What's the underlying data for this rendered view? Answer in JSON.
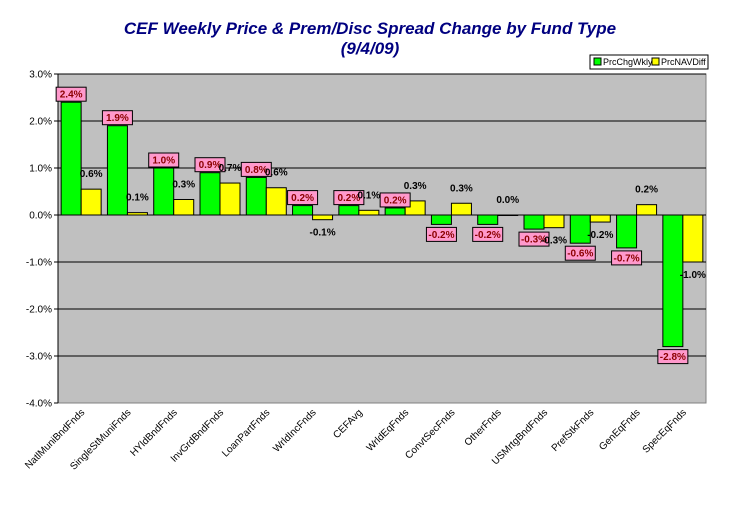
{
  "colors": {
    "plot_bg": "#c0c0c0",
    "series1": "#00ff00",
    "series2": "#ffff00",
    "title": "#000080",
    "label_box": "#ff99cc",
    "label_text": "#8b0000"
  },
  "chart_data": {
    "type": "bar",
    "title": "CEF Weekly Price & Prem/Disc Spread Change by Fund Type",
    "subtitle": "(9/4/09)",
    "ylim": [
      -4.0,
      3.0
    ],
    "yticks": [
      "3.0%",
      "2.0%",
      "1.0%",
      "0.0%",
      "-1.0%",
      "-2.0%",
      "-3.0%",
      "-4.0%"
    ],
    "ytick_values": [
      3,
      2,
      1,
      0,
      -1,
      -2,
      -3,
      -4
    ],
    "grid": true,
    "legend_position": "top-right",
    "categories": [
      "NatlMuniBndFnds",
      "SingleStMuniFnds",
      "HYldBndFnds",
      "InvGrdBndFnds",
      "LoanPartFnds",
      "WrldIncFnds",
      "CEFAvg",
      "WrldEqFnds",
      "ConvtSecFnds",
      "OtherFnds",
      "USMrtgBndFnds",
      "PrefStkFnds",
      "GenEqFnds",
      "SpecEqFnds"
    ],
    "series": [
      {
        "name": "PrcChgWkly",
        "values": [
          2.4,
          1.9,
          1.0,
          0.9,
          0.8,
          0.2,
          0.2,
          0.15,
          -0.2,
          -0.2,
          -0.3,
          -0.6,
          -0.7,
          -2.8
        ],
        "labels": [
          "2.4%",
          "1.9%",
          "1.0%",
          "0.9%",
          "0.8%",
          "0.2%",
          "0.2%",
          "0.2%",
          "-0.2%",
          "-0.2%",
          "-0.3%",
          "-0.6%",
          "-0.7%",
          "-2.8%"
        ]
      },
      {
        "name": "PrcNAVDiff",
        "values": [
          0.55,
          0.05,
          0.33,
          0.68,
          0.58,
          -0.1,
          0.1,
          0.3,
          0.25,
          0.0,
          -0.27,
          -0.15,
          0.22,
          -1.0
        ],
        "labels": [
          "0.6%",
          "0.1%",
          "0.3%",
          "0.7%",
          "0.6%",
          "-0.1%",
          "0.1%",
          "0.3%",
          "0.3%",
          "0.0%",
          "-0.3%",
          "-0.2%",
          "0.2%",
          "-1.0%"
        ]
      }
    ]
  }
}
